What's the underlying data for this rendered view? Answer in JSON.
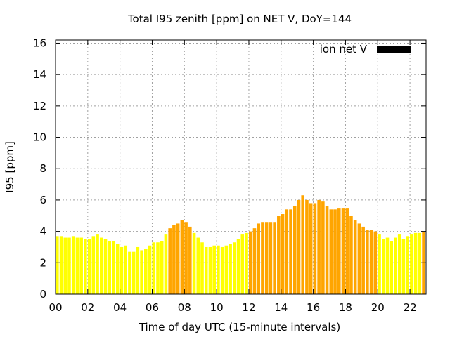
{
  "chart_data": {
    "type": "bar",
    "title": "Total I95 zenith [ppm] on NET V, DoY=144",
    "xlabel": "Time of day UTC (15-minute intervals)",
    "ylabel": "I95 [ppm]",
    "xlim": [
      0,
      23
    ],
    "ylim": [
      0,
      16.2
    ],
    "x_ticks": [
      0,
      2,
      4,
      6,
      8,
      10,
      12,
      14,
      16,
      18,
      20,
      22
    ],
    "x_tick_labels": [
      "00",
      "02",
      "04",
      "06",
      "08",
      "10",
      "12",
      "14",
      "16",
      "18",
      "20",
      "22"
    ],
    "y_ticks": [
      0,
      2,
      4,
      6,
      8,
      10,
      12,
      14,
      16
    ],
    "y_tick_labels": [
      "0",
      "2",
      "4",
      "6",
      "8",
      "10",
      "12",
      "14",
      "16"
    ],
    "grid": true,
    "legend": {
      "position": "top-right",
      "entries": [
        {
          "label": "ion net V",
          "color": "#000000"
        }
      ]
    },
    "colors": {
      "low": "#ffff00",
      "high": "#ffa500"
    },
    "interval_hours": 0.25,
    "values": [
      3.7,
      3.7,
      3.6,
      3.6,
      3.7,
      3.6,
      3.6,
      3.5,
      3.5,
      3.7,
      3.8,
      3.6,
      3.5,
      3.4,
      3.4,
      3.2,
      3.0,
      3.1,
      2.7,
      2.7,
      3.0,
      2.8,
      2.9,
      3.1,
      3.3,
      3.3,
      3.4,
      3.8,
      4.2,
      4.4,
      4.5,
      4.7,
      4.6,
      4.3,
      3.9,
      3.6,
      3.3,
      3.0,
      3.0,
      3.1,
      3.1,
      3.0,
      3.1,
      3.2,
      3.3,
      3.5,
      3.8,
      3.9,
      4.0,
      4.2,
      4.5,
      4.6,
      4.6,
      4.6,
      4.6,
      5.0,
      5.1,
      5.4,
      5.4,
      5.6,
      6.0,
      6.3,
      6.0,
      5.8,
      5.8,
      6.0,
      5.9,
      5.6,
      5.4,
      5.4,
      5.5,
      5.5,
      5.5,
      5.0,
      4.7,
      4.5,
      4.3,
      4.1,
      4.1,
      4.0,
      3.8,
      3.5,
      3.6,
      3.4,
      3.6,
      3.8,
      3.5,
      3.7,
      3.8,
      3.9,
      3.9,
      4.0,
      4.1
    ],
    "highlight": [
      0,
      0,
      0,
      0,
      0,
      0,
      0,
      0,
      0,
      0,
      0,
      0,
      0,
      0,
      0,
      0,
      0,
      0,
      0,
      0,
      0,
      0,
      0,
      0,
      0,
      0,
      0,
      0,
      1,
      1,
      1,
      1,
      1,
      1,
      0,
      0,
      0,
      0,
      0,
      0,
      0,
      0,
      0,
      0,
      0,
      0,
      0,
      0,
      1,
      1,
      1,
      1,
      1,
      1,
      1,
      1,
      1,
      1,
      1,
      1,
      1,
      1,
      1,
      1,
      1,
      1,
      1,
      1,
      1,
      1,
      1,
      1,
      1,
      1,
      1,
      1,
      1,
      1,
      1,
      1,
      0,
      0,
      0,
      0,
      0,
      0,
      0,
      0,
      0,
      0,
      0,
      1,
      1
    ]
  }
}
